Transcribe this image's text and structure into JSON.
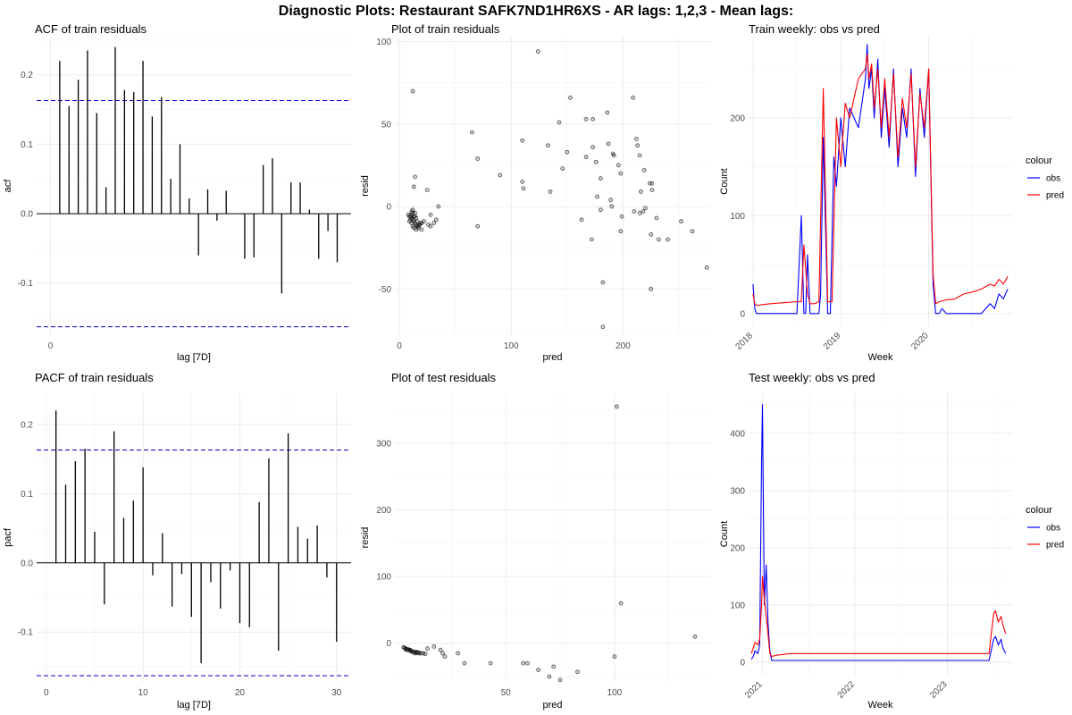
{
  "figure_title": "Diagnostic Plots: Restaurant SAFK7ND1HR6XS - AR lags: 1,2,3 - Mean lags:",
  "colors": {
    "obs": "#0000ff",
    "pred": "#ff0000",
    "ci": "#0000cc",
    "grid": "#ebebeb",
    "points": "#000000"
  },
  "chart_data": [
    {
      "id": "acf",
      "type": "bar",
      "title": "ACF of train residuals",
      "xlabel": "lag [7D]",
      "ylabel": "acf",
      "xlim": [
        -1.5,
        32.5
      ],
      "ylim": [
        -0.175,
        0.255
      ],
      "xticks": [
        0
      ],
      "xtick_labels": [
        "0"
      ],
      "yticks": [
        -0.1,
        0.0,
        0.1,
        0.2
      ],
      "ytick_labels": [
        "-0.1",
        "0.0",
        "0.1",
        "0.2"
      ],
      "ci": [
        0.163,
        -0.163
      ],
      "lags": [
        1,
        2,
        3,
        4,
        5,
        6,
        7,
        8,
        9,
        10,
        11,
        12,
        13,
        14,
        15,
        16,
        17,
        18,
        19,
        20,
        21,
        22,
        23,
        24,
        25,
        26,
        27,
        28,
        29,
        30,
        31,
        32
      ],
      "values": [
        0.22,
        0.155,
        0.193,
        0.235,
        0.145,
        0.038,
        0.24,
        0.178,
        0.175,
        0.22,
        0.14,
        0.168,
        0.05,
        0.1,
        0.022,
        -0.06,
        0.035,
        -0.01,
        0.033,
        0.0,
        -0.065,
        -0.063,
        0.07,
        0.08,
        -0.115,
        0.045,
        0.045,
        0.006,
        -0.065,
        -0.025,
        -0.07,
        0.0
      ]
    },
    {
      "id": "pacf",
      "type": "bar",
      "title": "PACF of train residuals",
      "xlabel": "lag [7D]",
      "ylabel": "pacf",
      "xlim": [
        -1,
        31.5
      ],
      "ylim": [
        -0.172,
        0.245
      ],
      "xticks": [
        0,
        10,
        20,
        30
      ],
      "xtick_labels": [
        "0",
        "10",
        "20",
        "30"
      ],
      "yticks": [
        -0.1,
        0.0,
        0.1,
        0.2
      ],
      "ytick_labels": [
        "-0.1",
        "0.0",
        "0.1",
        "0.2"
      ],
      "ci": [
        0.163,
        -0.163
      ],
      "lags": [
        1,
        2,
        3,
        4,
        5,
        6,
        7,
        8,
        9,
        10,
        11,
        12,
        13,
        14,
        15,
        16,
        17,
        18,
        19,
        20,
        21,
        22,
        23,
        24,
        25,
        26,
        27,
        28,
        29,
        30
      ],
      "values": [
        0.22,
        0.113,
        0.147,
        0.165,
        0.045,
        -0.06,
        0.19,
        0.065,
        0.09,
        0.138,
        -0.018,
        0.043,
        -0.063,
        -0.016,
        -0.078,
        -0.145,
        -0.028,
        -0.066,
        -0.011,
        -0.087,
        -0.093,
        0.088,
        0.151,
        -0.127,
        0.187,
        0.052,
        0.035,
        0.054,
        -0.021,
        -0.114
      ]
    },
    {
      "id": "train_resid",
      "type": "scatter",
      "title": "Plot of train residuals",
      "xlabel": "pred",
      "ylabel": "resid",
      "xlim": [
        -4,
        278
      ],
      "ylim": [
        -78,
        103
      ],
      "xticks": [
        0,
        100,
        200
      ],
      "xtick_labels": [
        "0",
        "100",
        "200"
      ],
      "yticks": [
        -50,
        0,
        50,
        100
      ],
      "ytick_labels": [
        "-50",
        "0",
        "50",
        "100"
      ],
      "points": [
        [
          12,
          70
        ],
        [
          14,
          18
        ],
        [
          13,
          12
        ],
        [
          25,
          10
        ],
        [
          28,
          -5
        ],
        [
          35,
          0
        ],
        [
          33,
          -8
        ],
        [
          28,
          -12
        ],
        [
          26,
          -11
        ],
        [
          31,
          -10
        ],
        [
          22,
          -9
        ],
        [
          20,
          -10
        ],
        [
          18,
          -11
        ],
        [
          11,
          -5
        ],
        [
          12,
          -4
        ],
        [
          10,
          -6
        ],
        [
          11,
          -7
        ],
        [
          12,
          -8
        ],
        [
          13,
          -9
        ],
        [
          14,
          -10
        ],
        [
          15,
          -11
        ],
        [
          16,
          -12
        ],
        [
          17,
          -13
        ],
        [
          10,
          -8
        ],
        [
          9,
          -6
        ],
        [
          8,
          -5
        ],
        [
          11,
          -3
        ],
        [
          12,
          -2
        ],
        [
          14,
          -6
        ],
        [
          16,
          -9
        ],
        [
          12,
          -12
        ],
        [
          13,
          -13
        ],
        [
          15,
          -14
        ],
        [
          17,
          -12
        ],
        [
          18,
          -11
        ],
        [
          19,
          -10
        ],
        [
          14,
          -4
        ],
        [
          11,
          -10
        ],
        [
          9,
          -9
        ],
        [
          20,
          -14
        ],
        [
          15,
          -7
        ],
        [
          13,
          -6
        ],
        [
          65,
          45
        ],
        [
          70,
          29
        ],
        [
          70,
          -12
        ],
        [
          90,
          19
        ],
        [
          110,
          15
        ],
        [
          110,
          40
        ],
        [
          111,
          11
        ],
        [
          124,
          94
        ],
        [
          133,
          37
        ],
        [
          135,
          9
        ],
        [
          143,
          51
        ],
        [
          146,
          23
        ],
        [
          150,
          33
        ],
        [
          153,
          66
        ],
        [
          163,
          -8
        ],
        [
          167,
          53
        ],
        [
          167,
          30
        ],
        [
          172,
          -20
        ],
        [
          173,
          36
        ],
        [
          173,
          53
        ],
        [
          176,
          27
        ],
        [
          177,
          6
        ],
        [
          180,
          17
        ],
        [
          180,
          -2
        ],
        [
          182,
          -46
        ],
        [
          182,
          -73
        ],
        [
          187,
          38
        ],
        [
          186,
          57
        ],
        [
          189,
          4
        ],
        [
          190,
          0
        ],
        [
          191,
          32
        ],
        [
          192,
          31
        ],
        [
          196,
          25
        ],
        [
          198,
          20
        ],
        [
          198,
          -15
        ],
        [
          199,
          -6
        ],
        [
          209,
          66
        ],
        [
          210,
          -3
        ],
        [
          212,
          41
        ],
        [
          213,
          37
        ],
        [
          215,
          31
        ],
        [
          215,
          -4
        ],
        [
          216,
          9
        ],
        [
          218,
          -3
        ],
        [
          219,
          22
        ],
        [
          220,
          -1
        ],
        [
          224,
          14
        ],
        [
          225,
          -17
        ],
        [
          225,
          -50
        ],
        [
          226,
          14
        ],
        [
          226,
          10
        ],
        [
          230,
          -7
        ],
        [
          232,
          -20
        ],
        [
          240,
          -20
        ],
        [
          252,
          -9
        ],
        [
          262,
          -15
        ],
        [
          275,
          -37
        ]
      ]
    },
    {
      "id": "test_resid",
      "type": "scatter",
      "title": "Plot of test residuals",
      "xlabel": "pred",
      "ylabel": "resid",
      "xlim": [
        -1,
        144
      ],
      "ylim": [
        -58,
        375
      ],
      "xticks": [
        50,
        100
      ],
      "xtick_labels": [
        "50",
        "100"
      ],
      "yticks": [
        0,
        100,
        200,
        300
      ],
      "ytick_labels": [
        "0",
        "100",
        "200",
        "300"
      ],
      "points": [
        [
          4,
          -8
        ],
        [
          5,
          -9
        ],
        [
          4.5,
          -10
        ],
        [
          6,
          -11
        ],
        [
          7,
          -12
        ],
        [
          8,
          -13
        ],
        [
          9,
          -14
        ],
        [
          10,
          -15
        ],
        [
          3,
          -6
        ],
        [
          3.5,
          -7
        ],
        [
          5.5,
          -10
        ],
        [
          6.5,
          -12
        ],
        [
          7.5,
          -14
        ],
        [
          8.5,
          -15
        ],
        [
          11,
          -15
        ],
        [
          12,
          -15
        ],
        [
          13,
          -16
        ],
        [
          4,
          -9
        ],
        [
          6,
          -10
        ],
        [
          9,
          -13
        ],
        [
          10,
          -14
        ],
        [
          14,
          -8
        ],
        [
          17,
          -5
        ],
        [
          20,
          -10
        ],
        [
          21,
          -15
        ],
        [
          22,
          -20
        ],
        [
          28,
          -15
        ],
        [
          31,
          -30
        ],
        [
          43,
          -30
        ],
        [
          58,
          -30
        ],
        [
          60,
          -30
        ],
        [
          65,
          -40
        ],
        [
          70,
          -50
        ],
        [
          72,
          -35
        ],
        [
          75,
          -55
        ],
        [
          83,
          -43
        ],
        [
          100,
          -20
        ],
        [
          101,
          355
        ],
        [
          103,
          60
        ],
        [
          137,
          10
        ]
      ]
    },
    {
      "id": "train_weekly",
      "type": "line",
      "title": "Train weekly: obs vs pred",
      "xlabel": "Week",
      "ylabel": "Count",
      "xlim": [
        2017.95,
        2020.95
      ],
      "ylim": [
        -13,
        283
      ],
      "xticks": [
        2018,
        2019,
        2020
      ],
      "xtick_labels": [
        "2018",
        "2019",
        "2020"
      ],
      "yticks": [
        0,
        100,
        200
      ],
      "ytick_labels": [
        "0",
        "100",
        "200"
      ],
      "legend_title": "colour",
      "legend_position": "right",
      "series": [
        {
          "name": "obs",
          "color": "#0000ff",
          "x": [
            2018.0,
            2018.02,
            2018.04,
            2018.1,
            2018.2,
            2018.35,
            2018.5,
            2018.55,
            2018.58,
            2018.6,
            2018.62,
            2018.65,
            2018.7,
            2018.75,
            2018.77,
            2018.8,
            2018.85,
            2018.88,
            2018.92,
            2018.95,
            2019.0,
            2019.05,
            2019.1,
            2019.2,
            2019.28,
            2019.3,
            2019.32,
            2019.35,
            2019.38,
            2019.42,
            2019.46,
            2019.5,
            2019.55,
            2019.6,
            2019.65,
            2019.7,
            2019.75,
            2019.8,
            2019.85,
            2019.9,
            2019.95,
            2020.0,
            2020.05,
            2020.08,
            2020.12,
            2020.15,
            2020.2,
            2020.25,
            2020.3,
            2020.4,
            2020.5,
            2020.6,
            2020.7,
            2020.75,
            2020.8,
            2020.85,
            2020.9
          ],
          "y": [
            30,
            5,
            0,
            0,
            0,
            0,
            0,
            100,
            0,
            0,
            60,
            0,
            0,
            0,
            20,
            180,
            0,
            0,
            160,
            130,
            200,
            150,
            210,
            190,
            240,
            275,
            230,
            250,
            200,
            260,
            180,
            230,
            170,
            250,
            150,
            210,
            180,
            250,
            140,
            230,
            180,
            250,
            30,
            0,
            0,
            5,
            0,
            0,
            0,
            0,
            0,
            0,
            10,
            5,
            20,
            15,
            25
          ]
        },
        {
          "name": "pred",
          "color": "#ff0000",
          "x": [
            2018.0,
            2018.02,
            2018.05,
            2018.1,
            2018.2,
            2018.35,
            2018.5,
            2018.55,
            2018.58,
            2018.62,
            2018.65,
            2018.7,
            2018.75,
            2018.8,
            2018.85,
            2018.9,
            2018.95,
            2019.0,
            2019.05,
            2019.1,
            2019.2,
            2019.28,
            2019.3,
            2019.32,
            2019.35,
            2019.38,
            2019.42,
            2019.46,
            2019.5,
            2019.55,
            2019.6,
            2019.65,
            2019.7,
            2019.75,
            2019.8,
            2019.85,
            2019.9,
            2019.95,
            2020.0,
            2020.05,
            2020.08,
            2020.12,
            2020.2,
            2020.3,
            2020.4,
            2020.5,
            2020.6,
            2020.7,
            2020.75,
            2020.8,
            2020.85,
            2020.9
          ],
          "y": [
            20,
            10,
            8,
            9,
            10,
            11,
            12,
            12,
            70,
            20,
            10,
            10,
            12,
            230,
            12,
            12,
            200,
            150,
            215,
            200,
            240,
            250,
            265,
            240,
            255,
            210,
            250,
            190,
            240,
            180,
            245,
            160,
            220,
            190,
            245,
            150,
            225,
            190,
            250,
            40,
            10,
            12,
            14,
            15,
            20,
            22,
            25,
            30,
            28,
            35,
            30,
            38
          ]
        }
      ]
    },
    {
      "id": "test_weekly",
      "type": "line",
      "title": "Test weekly: obs vs pred",
      "xlabel": "Week",
      "ylabel": "Count",
      "xlim": [
        2020.85,
        2023.7
      ],
      "ylim": [
        -22,
        470
      ],
      "xticks": [
        2021,
        2022,
        2023
      ],
      "xtick_labels": [
        "2021",
        "2022",
        "2023"
      ],
      "yticks": [
        0,
        100,
        200,
        300,
        400
      ],
      "ytick_labels": [
        "0",
        "100",
        "200",
        "300",
        "400"
      ],
      "legend_title": "colour",
      "legend_position": "right",
      "series": [
        {
          "name": "obs",
          "color": "#0000ff",
          "x": [
            2020.88,
            2020.9,
            2020.92,
            2020.95,
            2020.97,
            2020.99,
            2021.0,
            2021.02,
            2021.04,
            2021.06,
            2021.08,
            2021.1,
            2021.15,
            2021.3,
            2021.5,
            2021.7,
            2021.9,
            2022.1,
            2022.3,
            2022.5,
            2022.7,
            2022.9,
            2023.1,
            2023.3,
            2023.45,
            2023.5,
            2023.52,
            2023.55,
            2023.58,
            2023.6,
            2023.63
          ],
          "y": [
            5,
            10,
            20,
            15,
            30,
            350,
            450,
            100,
            170,
            70,
            20,
            3,
            3,
            3,
            3,
            3,
            3,
            3,
            3,
            3,
            3,
            3,
            3,
            3,
            3,
            40,
            45,
            30,
            40,
            25,
            15
          ]
        },
        {
          "name": "pred",
          "color": "#ff0000",
          "x": [
            2020.88,
            2020.9,
            2020.92,
            2020.95,
            2020.97,
            2020.99,
            2021.0,
            2021.02,
            2021.04,
            2021.06,
            2021.08,
            2021.1,
            2021.15,
            2021.3,
            2021.5,
            2021.7,
            2021.9,
            2022.1,
            2022.3,
            2022.5,
            2022.7,
            2022.9,
            2023.1,
            2023.3,
            2023.45,
            2023.5,
            2023.52,
            2023.55,
            2023.58,
            2023.6,
            2023.63
          ],
          "y": [
            15,
            25,
            35,
            30,
            40,
            100,
            150,
            110,
            80,
            50,
            15,
            10,
            12,
            15,
            15,
            15,
            15,
            15,
            15,
            15,
            15,
            15,
            15,
            15,
            15,
            85,
            90,
            70,
            80,
            65,
            50
          ]
        }
      ]
    }
  ]
}
